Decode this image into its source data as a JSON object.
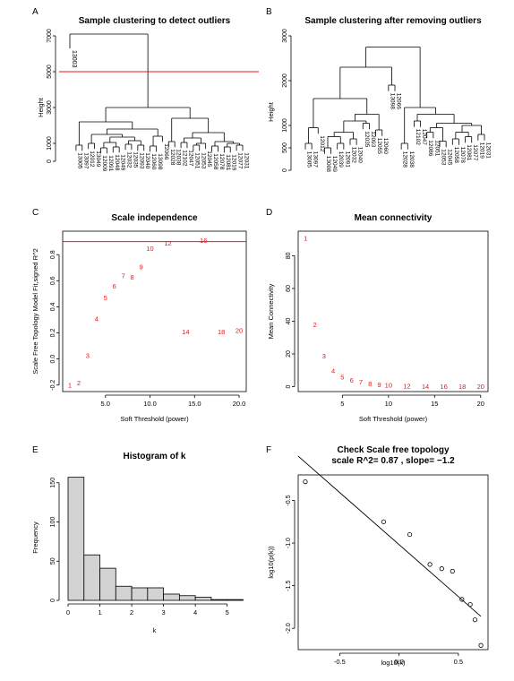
{
  "panels": [
    {
      "letter": "A",
      "type": "dendrogram",
      "title": "Sample clustering to detect outliers",
      "ylabel": "Height",
      "ylim": [
        0,
        7000
      ],
      "yticks": [
        0,
        1000,
        3000,
        5000,
        7000
      ],
      "cut_height": 5000,
      "outlier_label": "13003",
      "leaf_labels": [
        "13005",
        "13097",
        "12012",
        "13049",
        "12009",
        "12091",
        "12048",
        "12049",
        "12032",
        "12035",
        "12093",
        "12040",
        "12060",
        "13098",
        "12066",
        "12028",
        "12038",
        "12102",
        "12047",
        "12051",
        "12053",
        "12045",
        "12058",
        "12078",
        "12081",
        "12019",
        "12077",
        "12031"
      ]
    },
    {
      "letter": "B",
      "type": "dendrogram",
      "title": "Sample clustering after removing outliers",
      "ylabel": "Height",
      "ylim": [
        0,
        3000
      ],
      "yticks": [
        0,
        500,
        1000,
        2000,
        3000
      ],
      "leaf_labels": [
        "13005",
        "13097",
        "12012",
        "13008",
        "12049",
        "12039",
        "12091",
        "12032",
        "12040",
        "12035",
        "12093",
        "12055",
        "12060",
        "13098",
        "12066",
        "12028",
        "12038",
        "12102",
        "12047",
        "12086",
        "12051",
        "12053",
        "12045",
        "12058",
        "12078",
        "12081",
        "12077",
        "12019",
        "12031"
      ]
    },
    {
      "letter": "C",
      "type": "scatter-text",
      "title": "Scale independence",
      "xlabel": "Soft Threshold (power)",
      "ylabel": "Scale Free Topology Model Fit,signed R^2",
      "xlim": [
        0.2,
        20.8
      ],
      "ylim": [
        -0.25,
        0.98
      ],
      "xticks": [
        5,
        10,
        15,
        20
      ],
      "yticks": [
        -0.2,
        0.0,
        0.2,
        0.4,
        0.6,
        0.8
      ],
      "hline": 0.9
    },
    {
      "letter": "D",
      "type": "scatter-text",
      "title": "Mean connectivity",
      "xlabel": "Soft Threshold (power)",
      "ylabel": "Mean Connectivity",
      "xlim": [
        0.2,
        20.8
      ],
      "ylim": [
        -3,
        95
      ],
      "xticks": [
        5,
        10,
        15,
        20
      ],
      "yticks": [
        0,
        20,
        40,
        60,
        80
      ]
    },
    {
      "letter": "E",
      "type": "bar",
      "title": "Histogram of k",
      "xlabel": "k",
      "ylabel": "Frequency",
      "xlim": [
        0,
        5.6
      ],
      "ylim": [
        0,
        160
      ],
      "xticks": [
        0,
        1,
        2,
        3,
        4,
        5
      ],
      "yticks": [
        0,
        50,
        100,
        150
      ]
    },
    {
      "letter": "F",
      "type": "scatter",
      "title": "Check Scale free topology",
      "subtitle": "scale R^2= 0.87 , slope= −1.2",
      "xlabel": "log10(k)",
      "ylabel": "log10(p(k))",
      "xlim": [
        -0.85,
        0.75
      ],
      "ylim": [
        -2.25,
        -0.2
      ],
      "xticks": [
        -0.5,
        0.0,
        0.5
      ],
      "yticks": [
        -2.0,
        -1.5,
        -1.0,
        -0.5
      ]
    }
  ],
  "chart_data": [
    {
      "type": "dendrogram",
      "title": "Sample clustering to detect outliers",
      "ylabel": "Height",
      "ylim": [
        0,
        7000
      ],
      "cut_height": 5000,
      "merges": [
        {
          "a": "L0",
          "b": "L1",
          "h": 900
        },
        {
          "a": "L2",
          "b": "L3",
          "h": 1000
        },
        {
          "a": "L4",
          "b": "L5",
          "h": 750
        },
        {
          "a": "L6",
          "b": "L7",
          "h": 800
        },
        {
          "a": "M2",
          "b": "M3",
          "h": 1050
        },
        {
          "a": "L8",
          "b": "L9",
          "h": 950
        },
        {
          "a": "L10",
          "b": "L11",
          "h": 900
        },
        {
          "a": "M5",
          "b": "M6",
          "h": 1150
        },
        {
          "a": "M4",
          "b": "M7",
          "h": 1350
        },
        {
          "a": "M1",
          "b": "M8",
          "h": 1500
        },
        {
          "a": "L12",
          "b": "L13",
          "h": 850
        },
        {
          "a": "M10",
          "b": "L14",
          "h": 1400
        },
        {
          "a": "M9",
          "b": "M11",
          "h": 1800
        },
        {
          "a": "M0",
          "b": "M12",
          "h": 2200
        },
        {
          "a": "L15",
          "b": "L16",
          "h": 1100
        },
        {
          "a": "L17",
          "b": "L18",
          "h": 1050
        },
        {
          "a": "L19",
          "b": "L20",
          "h": 900
        },
        {
          "a": "M16",
          "b": "L21",
          "h": 1000
        },
        {
          "a": "M15",
          "b": "M17",
          "h": 1300
        },
        {
          "a": "L22",
          "b": "L23",
          "h": 850
        },
        {
          "a": "L24",
          "b": "L25",
          "h": 800
        },
        {
          "a": "L26",
          "b": "L27",
          "h": 900
        },
        {
          "a": "M20",
          "b": "M21",
          "h": 1000
        },
        {
          "a": "M19",
          "b": "M22",
          "h": 1100
        },
        {
          "a": "M18",
          "b": "M23",
          "h": 1600
        },
        {
          "a": "M14",
          "b": "M24",
          "h": 2400
        },
        {
          "a": "M13",
          "b": "M25",
          "h": 3000
        },
        {
          "a": "Lout",
          "b": "M26",
          "h": 7100
        }
      ]
    },
    {
      "type": "dendrogram",
      "title": "Sample clustering after removing outliers",
      "ylabel": "Height",
      "ylim": [
        0,
        3000
      ],
      "merges": [
        {
          "a": "L0",
          "b": "L1",
          "h": 600
        },
        {
          "a": "M0",
          "b": "L2",
          "h": 950
        },
        {
          "a": "L3",
          "b": "L4",
          "h": 500
        },
        {
          "a": "L5",
          "b": "L6",
          "h": 600
        },
        {
          "a": "M2",
          "b": "M3",
          "h": 750
        },
        {
          "a": "L7",
          "b": "L8",
          "h": 700
        },
        {
          "a": "M4",
          "b": "M5",
          "h": 850
        },
        {
          "a": "L9",
          "b": "L10",
          "h": 1050
        },
        {
          "a": "M6",
          "b": "M7",
          "h": 1100
        },
        {
          "a": "L11",
          "b": "L12",
          "h": 900
        },
        {
          "a": "M8",
          "b": "M9",
          "h": 1250
        },
        {
          "a": "M1",
          "b": "M10",
          "h": 1600
        },
        {
          "a": "L13",
          "b": "L14",
          "h": 1900
        },
        {
          "a": "M11",
          "b": "M12",
          "h": 2300
        },
        {
          "a": "L15",
          "b": "L16",
          "h": 600
        },
        {
          "a": "L17",
          "b": "L18",
          "h": 1100
        },
        {
          "a": "L19",
          "b": "L20",
          "h": 850
        },
        {
          "a": "L21",
          "b": "L22",
          "h": 650
        },
        {
          "a": "M16",
          "b": "M17",
          "h": 950
        },
        {
          "a": "L23",
          "b": "L24",
          "h": 700
        },
        {
          "a": "L25",
          "b": "L26",
          "h": 750
        },
        {
          "a": "M19",
          "b": "M20",
          "h": 850
        },
        {
          "a": "L27",
          "b": "L28",
          "h": 800
        },
        {
          "a": "M21",
          "b": "M22",
          "h": 1000
        },
        {
          "a": "M18",
          "b": "M23",
          "h": 1050
        },
        {
          "a": "M15",
          "b": "M24",
          "h": 1250
        },
        {
          "a": "M14",
          "b": "M25",
          "h": 1400
        },
        {
          "a": "M13",
          "b": "M26",
          "h": 2750
        }
      ]
    },
    {
      "type": "scatter",
      "title": "Scale independence",
      "xlabel": "Soft Threshold (power)",
      "ylabel": "Scale Free Topology Model Fit,signed R^2",
      "hline": 0.9,
      "points": [
        {
          "x": 1,
          "y": -0.2
        },
        {
          "x": 2,
          "y": -0.18
        },
        {
          "x": 3,
          "y": 0.03
        },
        {
          "x": 4,
          "y": 0.31
        },
        {
          "x": 5,
          "y": 0.47
        },
        {
          "x": 6,
          "y": 0.56
        },
        {
          "x": 7,
          "y": 0.64
        },
        {
          "x": 8,
          "y": 0.63
        },
        {
          "x": 9,
          "y": 0.71
        },
        {
          "x": 10,
          "y": 0.85
        },
        {
          "x": 12,
          "y": 0.89
        },
        {
          "x": 14,
          "y": 0.21
        },
        {
          "x": 16,
          "y": 0.91
        },
        {
          "x": 18,
          "y": 0.21
        },
        {
          "x": 20,
          "y": 0.22
        }
      ]
    },
    {
      "type": "scatter",
      "title": "Mean connectivity",
      "xlabel": "Soft Threshold (power)",
      "ylabel": "Mean Connectivity",
      "points": [
        {
          "x": 1,
          "y": 91
        },
        {
          "x": 2,
          "y": 38
        },
        {
          "x": 3,
          "y": 19
        },
        {
          "x": 4,
          "y": 10
        },
        {
          "x": 5,
          "y": 6
        },
        {
          "x": 6,
          "y": 4
        },
        {
          "x": 7,
          "y": 3
        },
        {
          "x": 8,
          "y": 2
        },
        {
          "x": 9,
          "y": 1.5
        },
        {
          "x": 10,
          "y": 1
        },
        {
          "x": 12,
          "y": 0.6
        },
        {
          "x": 14,
          "y": 0.4
        },
        {
          "x": 16,
          "y": 0.3
        },
        {
          "x": 18,
          "y": 0.2
        },
        {
          "x": 20,
          "y": 0.2
        }
      ]
    },
    {
      "type": "bar",
      "title": "Histogram of k",
      "xlabel": "k",
      "ylabel": "Frequency",
      "bin_edges": [
        0,
        0.5,
        1.0,
        1.5,
        2.0,
        2.5,
        3.0,
        3.5,
        4.0,
        4.5,
        5.0,
        5.5
      ],
      "values": [
        157,
        58,
        41,
        18,
        16,
        16,
        8,
        6,
        4,
        1,
        1
      ]
    },
    {
      "type": "scatter",
      "title": "Check Scale free topology",
      "subtitle": "scale R^2= 0.87 , slope= −1.2",
      "xlabel": "log10(k)",
      "ylabel": "log10(p(k))",
      "points": [
        {
          "x": -0.79,
          "y": -0.28
        },
        {
          "x": -0.13,
          "y": -0.75
        },
        {
          "x": 0.09,
          "y": -0.9
        },
        {
          "x": 0.26,
          "y": -1.25
        },
        {
          "x": 0.36,
          "y": -1.3
        },
        {
          "x": 0.45,
          "y": -1.33
        },
        {
          "x": 0.53,
          "y": -1.66
        },
        {
          "x": 0.6,
          "y": -1.72
        },
        {
          "x": 0.64,
          "y": -1.9
        },
        {
          "x": 0.69,
          "y": -2.2
        }
      ],
      "fit_line": {
        "x": [
          -0.85,
          0.69
        ],
        "y": [
          0.02,
          -1.86
        ]
      }
    }
  ]
}
